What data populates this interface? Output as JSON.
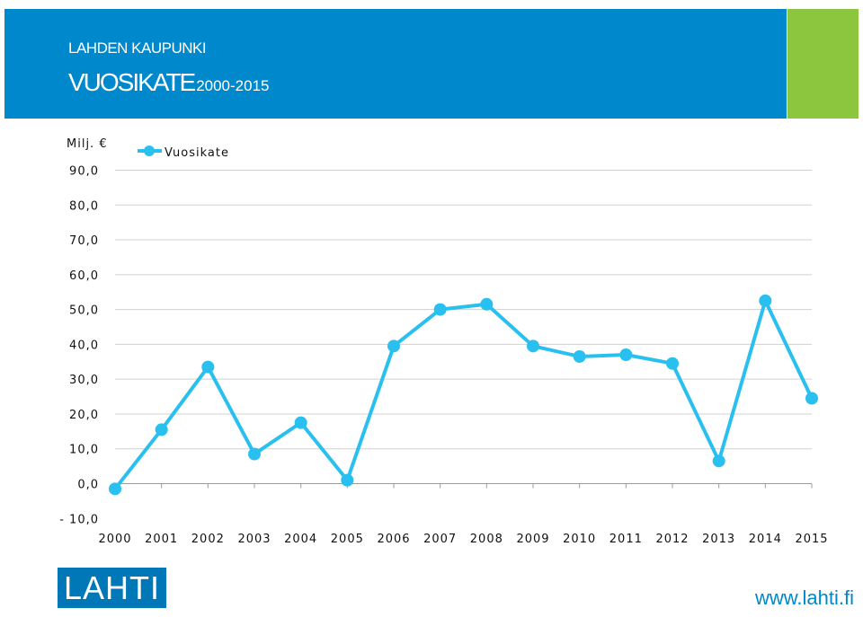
{
  "header": {
    "org": "LAHDEN KAUPUNKI",
    "title": "VUOSIKATE",
    "years": "2000-2015"
  },
  "footer": {
    "logo_text": "LAHTI",
    "website": "www.lahti.fi"
  },
  "colors": {
    "banner": "#0088cc",
    "accent": "#8cc63f",
    "series": "#29c0ef"
  },
  "chart_data": {
    "type": "line",
    "ylabel": "Milj. €",
    "x": [
      "2000",
      "2001",
      "2002",
      "2003",
      "2004",
      "2005",
      "2006",
      "2007",
      "2008",
      "2009",
      "2010",
      "2011",
      "2012",
      "2013",
      "2014",
      "2015"
    ],
    "series": [
      {
        "name": "Vuosikate",
        "values": [
          -1.5,
          15.5,
          33.5,
          8.5,
          17.5,
          1.0,
          39.5,
          50.0,
          51.5,
          39.5,
          36.5,
          37.0,
          34.5,
          6.5,
          52.5,
          24.5
        ]
      }
    ],
    "ylim": [
      -10,
      90
    ],
    "yticks": [
      90,
      80,
      70,
      60,
      50,
      40,
      30,
      20,
      10,
      0,
      -10
    ],
    "ytick_labels": [
      "90,0",
      "80,0",
      "70,0",
      "60,0",
      "50,0",
      "40,0",
      "30,0",
      "20,0",
      "10,0",
      "0,0",
      "- 10,0"
    ],
    "grid": true,
    "legend": "top-left"
  }
}
